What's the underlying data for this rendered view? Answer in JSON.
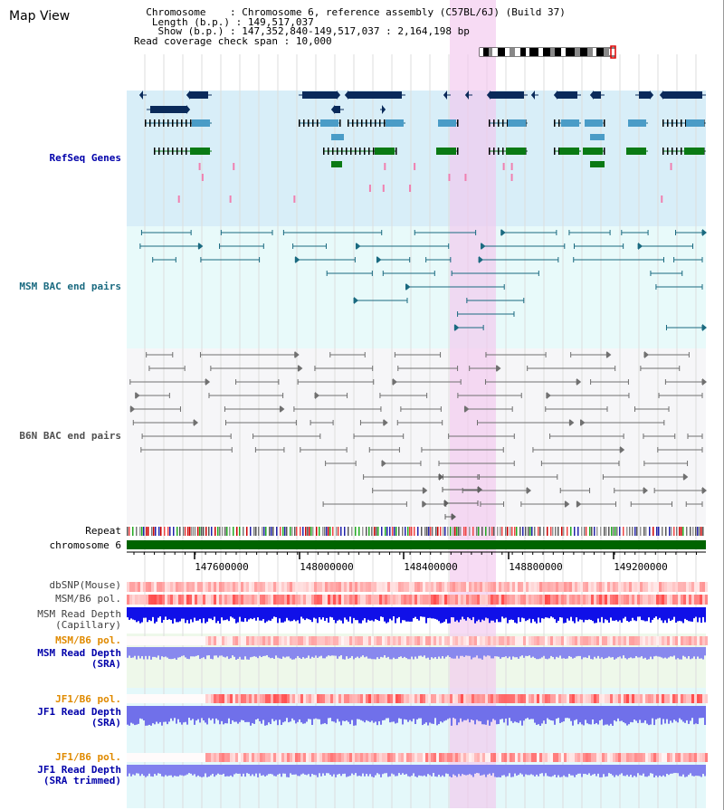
{
  "app": {
    "title": "Map View"
  },
  "info": {
    "chromosome_label": "Chromosome    ",
    "chromosome_value": "Chromosome 6, reference assembly (C57BL/6J) (Build 37)",
    "length_label": "Length (b.p.)",
    "length_value": "149,517,037",
    "show_label": "Show (b.p.)",
    "show_value": "147,352,840-149,517,037 : 2,164,198 bp",
    "span_label": "Read coverage check span",
    "span_value": "10,000"
  },
  "tracks": {
    "refseq": "RefSeq Genes",
    "msm_bac": "MSM BAC end pairs",
    "b6n_bac": "B6N BAC end pairs",
    "repeat": "Repeat",
    "chromosome": "chromosome 6",
    "dbsnp": "dbSNP(Mouse)",
    "msm_b6_pol": "MSM/B6 pol.",
    "msm_depth_cap_1": "MSM Read Depth",
    "msm_depth_cap_2": "(Capillary)",
    "msm_b6_pol2": "MSM/B6 pol.",
    "msm_depth_sra_1": "MSM Read Depth",
    "msm_depth_sra_2": "(SRA)",
    "jf1_b6_pol": "JF1/B6 pol.",
    "jf1_depth_sra_1": "JF1 Read Depth",
    "jf1_depth_sra_2": "(SRA)",
    "jf1_b6_pol2": "JF1/B6 pol.",
    "jf1_depth_trim_1": "JF1 Read Depth",
    "jf1_depth_trim_2": "(SRA trimmed)"
  },
  "axis": {
    "ticks": [
      "147600000",
      "148000000",
      "148400000",
      "148800000",
      "149200000"
    ]
  },
  "colors": {
    "refseq_bg": "#d8eef8",
    "msm_bg": "#e8fafa",
    "b6n_bg": "#f6f6f8",
    "highlight": "#f3c8ee",
    "refseq_label": "#0000aa",
    "msm_label": "#1a6a80",
    "b6n_label": "#505050",
    "pol_label": "#e08a00",
    "depth_label": "#0000aa",
    "chromosome_bar": "#006400"
  }
}
